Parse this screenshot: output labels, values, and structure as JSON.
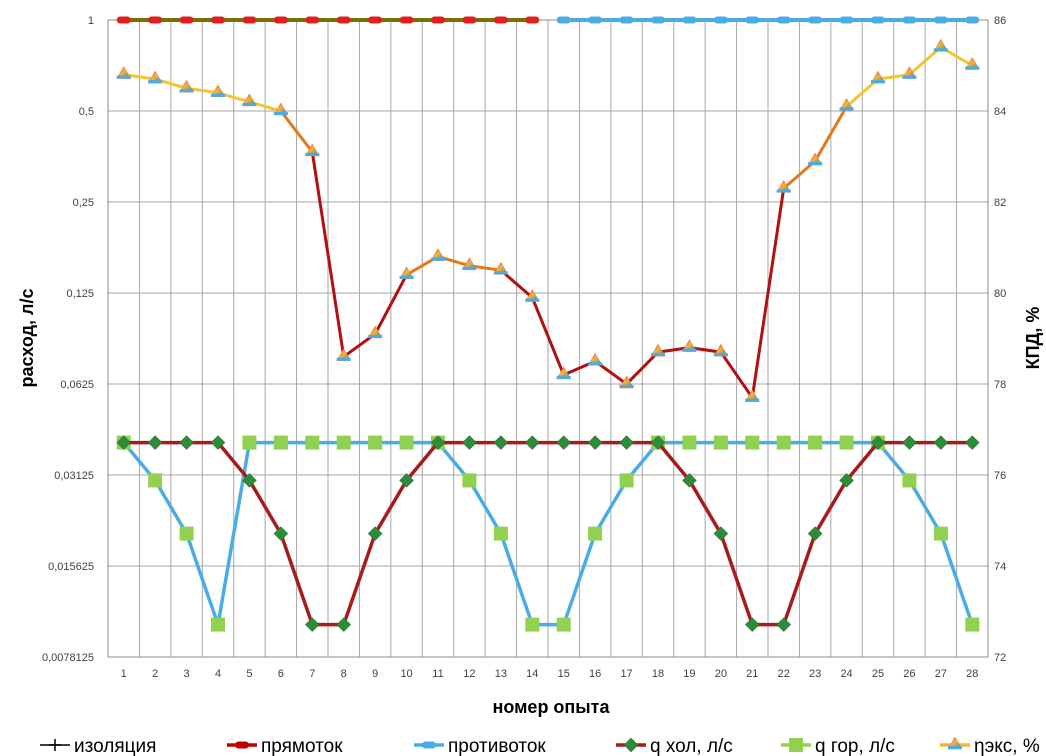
{
  "chart_data": {
    "type": "line",
    "xlabel": "номер опыта",
    "ylabel": "расход, л/с",
    "y2label": "КПД, %",
    "x": [
      1,
      2,
      3,
      4,
      5,
      6,
      7,
      8,
      9,
      10,
      11,
      12,
      13,
      14,
      15,
      16,
      17,
      18,
      19,
      20,
      21,
      22,
      23,
      24,
      25,
      26,
      27,
      28
    ],
    "y_scale": "log2",
    "y_ticks": [
      "1",
      "0,5",
      "0,25",
      "0,125",
      "0,0625",
      "0,03125",
      "0,015625",
      "0,0078125"
    ],
    "y_tick_values": [
      1,
      0.5,
      0.25,
      0.125,
      0.0625,
      0.03125,
      0.015625,
      0.0078125
    ],
    "ylim": [
      0.0078125,
      1
    ],
    "y2_ticks": [
      "86",
      "84",
      "82",
      "80",
      "78",
      "76",
      "74",
      "72"
    ],
    "y2_tick_values": [
      86,
      84,
      82,
      80,
      78,
      76,
      74,
      72
    ],
    "y2lim": [
      72,
      86
    ],
    "grid": true,
    "legend_position": "bottom",
    "series": [
      {
        "name": "изоляция",
        "color": "#000000",
        "marker": "plus",
        "axis": "left",
        "values": [
          1,
          1,
          1,
          1,
          1,
          1,
          1,
          1,
          1,
          1,
          1,
          1,
          1,
          1,
          null,
          null,
          null,
          null,
          null,
          null,
          null,
          null,
          null,
          null,
          null,
          null,
          null,
          null
        ]
      },
      {
        "name": "прямоток",
        "color": "#C00000",
        "marker": "dash",
        "axis": "left",
        "values": [
          1,
          1,
          1,
          1,
          1,
          1,
          1,
          1,
          1,
          1,
          1,
          1,
          1,
          1,
          null,
          null,
          null,
          null,
          null,
          null,
          null,
          null,
          null,
          null,
          null,
          null,
          null,
          null
        ]
      },
      {
        "name": "противоток",
        "color": "#4BACE5",
        "marker": "dash",
        "axis": "left",
        "values": [
          null,
          null,
          null,
          null,
          null,
          null,
          null,
          null,
          null,
          null,
          null,
          null,
          null,
          null,
          1,
          1,
          1,
          1,
          1,
          1,
          1,
          1,
          1,
          1,
          1,
          1,
          1,
          1
        ]
      },
      {
        "name": "q хол, л/с",
        "color": "#A61C1C",
        "marker": "diamond",
        "marker_color": "#2E8B3A",
        "axis": "left",
        "values": [
          0.04,
          0.04,
          0.04,
          0.04,
          0.03,
          0.02,
          0.01,
          0.01,
          0.02,
          0.03,
          0.04,
          0.04,
          0.04,
          0.04,
          0.04,
          0.04,
          0.04,
          0.04,
          0.03,
          0.02,
          0.01,
          0.01,
          0.02,
          0.03,
          0.04,
          0.04,
          0.04,
          0.04
        ]
      },
      {
        "name": "q гор, л/с",
        "color": "#4BACE5",
        "marker": "square",
        "marker_color": "#92D050",
        "axis": "left",
        "values": [
          0.04,
          0.03,
          0.02,
          0.01,
          0.04,
          0.04,
          0.04,
          0.04,
          0.04,
          0.04,
          0.04,
          0.03,
          0.02,
          0.01,
          0.01,
          0.02,
          0.03,
          0.04,
          0.04,
          0.04,
          0.04,
          0.04,
          0.04,
          0.04,
          0.04,
          0.03,
          0.02,
          0.01
        ]
      },
      {
        "name": "ηэкс, %",
        "color": "#F5B52E",
        "marker": "triangle",
        "axis": "right",
        "values": [
          84.8,
          84.7,
          84.5,
          84.4,
          84.2,
          84.0,
          83.1,
          78.6,
          79.1,
          80.4,
          80.8,
          80.6,
          80.5,
          79.9,
          78.2,
          78.5,
          78.0,
          78.7,
          78.8,
          78.7,
          77.7,
          82.3,
          82.9,
          84.1,
          84.7,
          84.8,
          85.4,
          85.0
        ]
      }
    ]
  }
}
